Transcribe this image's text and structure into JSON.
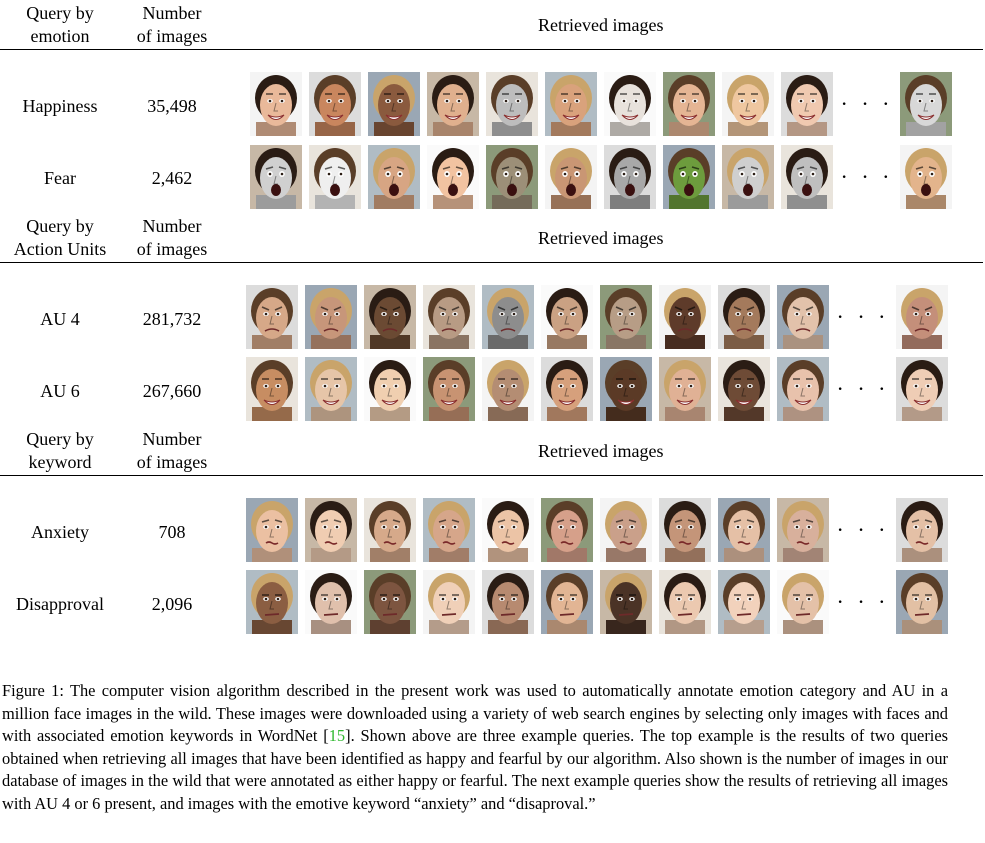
{
  "sections": [
    {
      "id": "emotion",
      "header": {
        "query_line1": "Query by",
        "query_line2": "emotion",
        "count_line1": "Number",
        "count_line2": "of images",
        "retrieved": "Retrieved images"
      },
      "rows": [
        {
          "label": "Happiness",
          "count": "35,498",
          "tone": "happy",
          "skin": [
            "#e9b99a",
            "#c9865e",
            "#8a5a3e",
            "#e0b08e",
            "#bdbdbd",
            "#d9a27c",
            "#e8e2dc",
            "#e5b594",
            "#efc7a0",
            "#f0c9b0"
          ],
          "last_skin": "#d8d8d8"
        },
        {
          "label": "Fear",
          "count": "2,462",
          "tone": "fear",
          "skin": [
            "#d0d0d0",
            "#efefef",
            "#d7a583",
            "#f2c3a1",
            "#9c8f78",
            "#c99674",
            "#a8a8a8",
            "#6d9c3d",
            "#cfcfcf",
            "#bfbfbf"
          ],
          "last_skin": "#e3b48c"
        }
      ]
    },
    {
      "id": "au",
      "header": {
        "query_line1": "Query by",
        "query_line2": "Action Units",
        "count_line1": "Number",
        "count_line2": "of images",
        "retrieved": "Retrieved images"
      },
      "rows": [
        {
          "label": "AU 4",
          "count": "281,732",
          "tone": "frown",
          "skin": [
            "#d6a888",
            "#c7967a",
            "#6b4a33",
            "#b89b84",
            "#8d8d8d",
            "#caa183",
            "#b79d86",
            "#5e3b2a",
            "#a47a5c",
            "#e2c2ab"
          ],
          "last_skin": "#c48f7a"
        },
        {
          "label": "AU 6",
          "count": "267,660",
          "tone": "happy",
          "skin": [
            "#c78d62",
            "#e6c5a8",
            "#f0cfb0",
            "#c89372",
            "#b48d73",
            "#d6a07c",
            "#5b3a26",
            "#e0b195",
            "#6e4b36",
            "#e8c2ac"
          ],
          "last_skin": "#efcdb5"
        }
      ]
    },
    {
      "id": "keyword",
      "header": {
        "query_line1": "Query by",
        "query_line2": "keyword",
        "count_line1": "Number",
        "count_line2": "of images",
        "retrieved": "Retrieved images"
      },
      "rows": [
        {
          "label": "Anxiety",
          "count": "708",
          "tone": "anxious",
          "skin": [
            "#ebc0a2",
            "#f0cdb2",
            "#d6a98a",
            "#d6a68a",
            "#ecc4a6",
            "#d6a08a",
            "#caa08a",
            "#c49579",
            "#e5c0a6",
            "#d8b09c"
          ],
          "last_skin": "#e4c0a6"
        },
        {
          "label": "Disapproval",
          "count": "2,096",
          "tone": "disapprove",
          "skin": [
            "#8b5e42",
            "#e0c0ac",
            "#7d5540",
            "#f0d0b8",
            "#b78a70",
            "#e2b594",
            "#4b3326",
            "#ecc9b0",
            "#f2d2bc",
            "#e4c1a8"
          ],
          "last_skin": "#e2c0a4"
        }
      ]
    }
  ],
  "ellipsis": "· · ·",
  "caption": {
    "before_ref": "Figure 1: The computer vision algorithm described in the present work was used to automatically annotate emotion category and AU in a million face images in the wild. These images were downloaded using a variety of web search engines by selecting only images with faces and with associated emotion keywords in WordNet [",
    "ref": "15",
    "after_ref": "]. Shown above are three example queries. The top example is the results of two queries obtained when retrieving all images that have been identified as happy and fearful by our algorithm. Also shown is the number of images in our database of images in the wild that were annotated as either happy or fearful. The next example queries show the results of retrieving all images with AU 4 or 6 present, and images with the emotive keyword “anxiety” and “disaproval.”"
  }
}
